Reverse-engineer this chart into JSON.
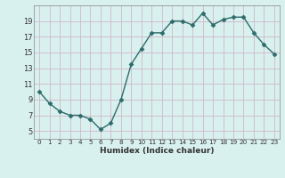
{
  "x": [
    0,
    1,
    2,
    3,
    4,
    5,
    6,
    7,
    8,
    9,
    10,
    11,
    12,
    13,
    14,
    15,
    16,
    17,
    18,
    19,
    20,
    21,
    22,
    23
  ],
  "y": [
    10,
    8.5,
    7.5,
    7,
    7,
    6.5,
    5.2,
    6,
    9,
    13.5,
    15.5,
    17.5,
    17.5,
    19,
    19,
    18.5,
    20,
    18.5,
    19.2,
    19.5,
    19.5,
    17.5,
    16,
    14.8
  ],
  "line_color": "#2d6b6b",
  "marker": "D",
  "marker_size": 2.5,
  "bg_color": "#d8f0ee",
  "grid_major_color": "#b8d8d4",
  "grid_minor_color": "#cce4e0",
  "tick_color": "#333333",
  "xlabel": "Humidex (Indice chaleur)",
  "ylim": [
    4,
    21
  ],
  "xlim": [
    -0.5,
    23.5
  ],
  "yticks": [
    5,
    7,
    9,
    11,
    13,
    15,
    17,
    19
  ],
  "xticks": [
    0,
    1,
    2,
    3,
    4,
    5,
    6,
    7,
    8,
    9,
    10,
    11,
    12,
    13,
    14,
    15,
    16,
    17,
    18,
    19,
    20,
    21,
    22,
    23
  ]
}
